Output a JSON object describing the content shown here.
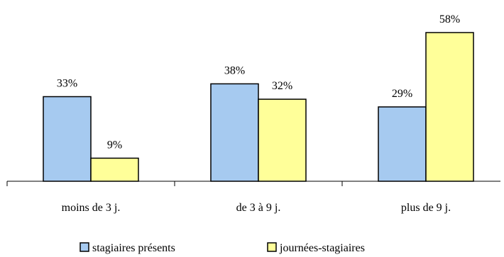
{
  "chart_data": {
    "type": "bar",
    "categories": [
      "moins de 3 j.",
      "de 3 à 9 j.",
      "plus de  9 j."
    ],
    "series": [
      {
        "name": "stagiaires présents",
        "values": [
          33,
          38,
          29
        ],
        "labels": [
          "33%",
          "38%",
          "29%"
        ],
        "color": "#a6caf0"
      },
      {
        "name": "journées-stagiaires",
        "values": [
          9,
          32,
          58
        ],
        "labels": [
          "9%",
          "32%",
          "58%"
        ],
        "color": "#ffff99"
      }
    ],
    "ylim": [
      0,
      60
    ],
    "grid": false,
    "legend_position": "bottom"
  }
}
